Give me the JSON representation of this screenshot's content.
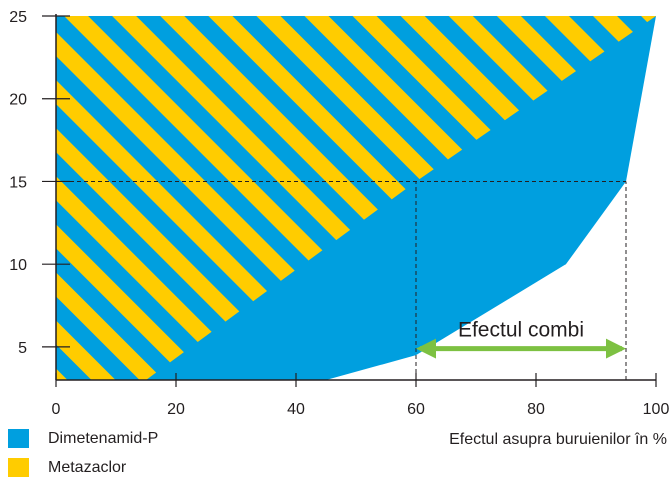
{
  "chart_data": {
    "type": "area",
    "title": "",
    "xlabel": "Efectul asupra buruienilor în %",
    "ylabel": "",
    "xlim": [
      0,
      100
    ],
    "ylim": [
      3,
      25
    ],
    "x_ticks": [
      0,
      20,
      40,
      60,
      80,
      100
    ],
    "y_ticks": [
      5,
      10,
      15,
      20,
      25
    ],
    "series": [
      {
        "name": "Dimetenamid-P",
        "color": "#009fdf",
        "fill": "solid",
        "points": [
          [
            0,
            3
          ],
          [
            45,
            3
          ],
          [
            60,
            4.5
          ],
          [
            85,
            10
          ],
          [
            95,
            15
          ],
          [
            100,
            25
          ]
        ]
      },
      {
        "name": "Metazaclor",
        "color": "#ffcc00",
        "fill": "diagonal stripes on #009fdf",
        "points": [
          [
            0,
            3
          ],
          [
            15,
            3
          ],
          [
            60,
            15
          ],
          [
            100,
            25
          ]
        ]
      }
    ],
    "reference_lines": [
      {
        "orientation": "horizontal",
        "y": 15,
        "x_from": 0,
        "x_to": 95
      },
      {
        "orientation": "vertical",
        "x": 60,
        "y_from": 3,
        "y_to": 15
      },
      {
        "orientation": "vertical",
        "x": 95,
        "y_from": 3,
        "y_to": 15
      }
    ],
    "annotation": {
      "text": "Efectul combi",
      "x_from": 60,
      "x_to": 95,
      "y": 4.9,
      "arrow": "double-headed",
      "arrow_color": "#7dc142"
    },
    "legend": {
      "placement": "bottom-left"
    },
    "grid": false
  }
}
